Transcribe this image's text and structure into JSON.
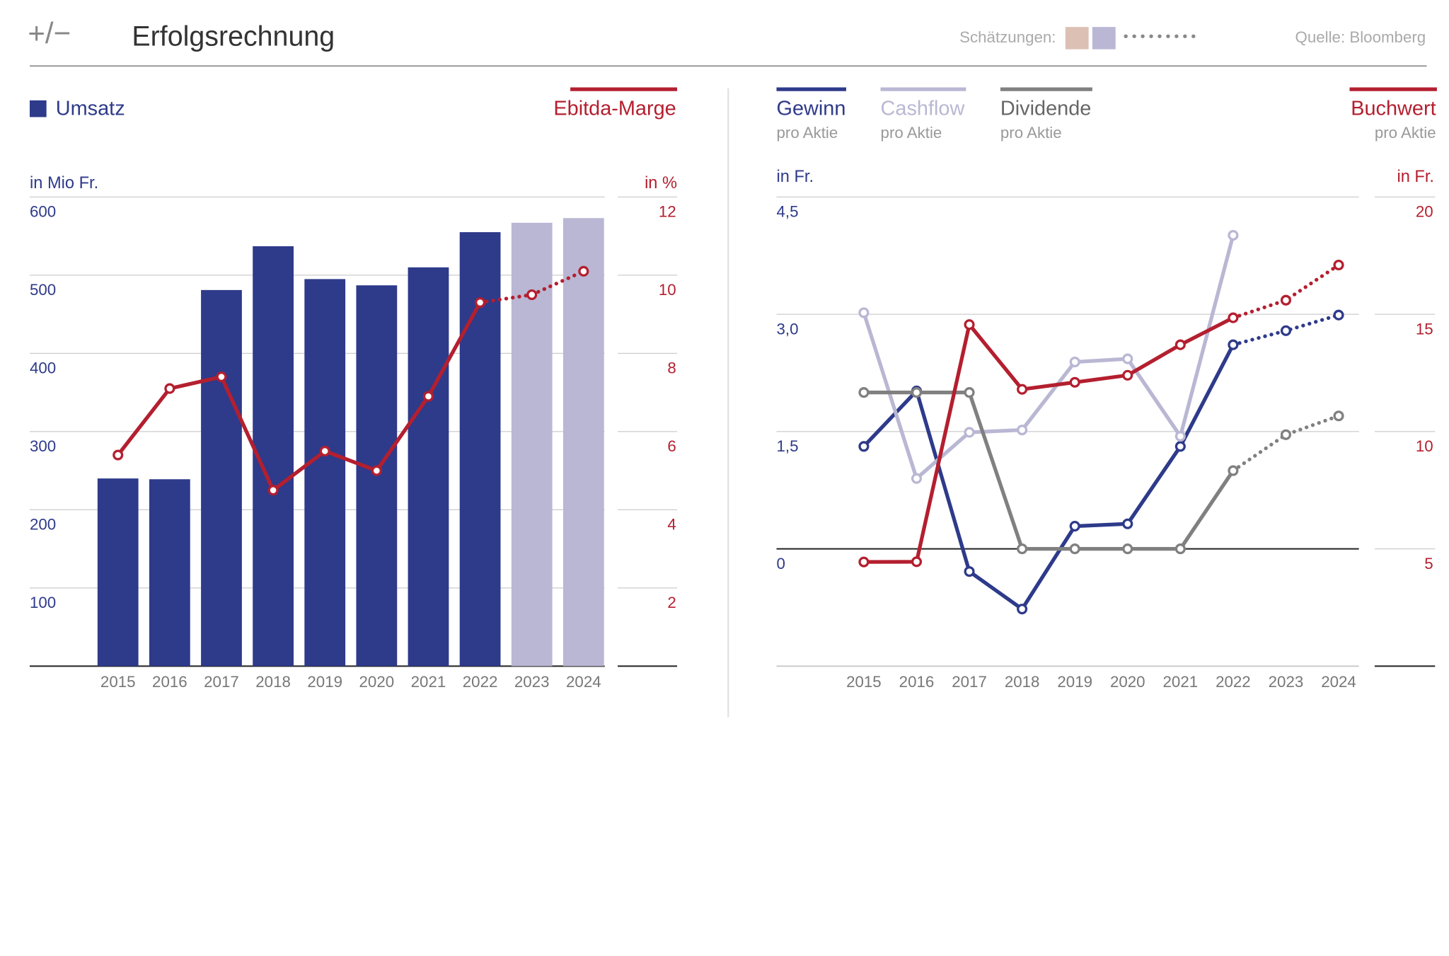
{
  "header": {
    "logo": "+/−",
    "title": "Erfolgsrechnung",
    "estimates_label": "Schätzungen:",
    "estimate_colors": [
      "#dcc0b4",
      "#b9b7d3"
    ],
    "source": "Quelle: Bloomberg"
  },
  "chart_data": [
    {
      "type": "bar",
      "categories": [
        "2015",
        "2016",
        "2017",
        "2018",
        "2019",
        "2020",
        "2021",
        "2022",
        "2023",
        "2024"
      ],
      "estimates": [
        "2023",
        "2024"
      ],
      "y_unit": "in Mio Fr.",
      "y2_unit": "in %",
      "ylim": [
        0,
        600
      ],
      "yticks": [
        100,
        200,
        300,
        400,
        500,
        600
      ],
      "y2lim": [
        0,
        12
      ],
      "y2ticks": [
        2,
        4,
        6,
        8,
        10,
        12
      ],
      "grid": true,
      "series": [
        {
          "name": "Umsatz",
          "type": "bar",
          "color": "#2e3a8a",
          "estimate_color": "#b9b7d3",
          "values": [
            240,
            239,
            481,
            537,
            495,
            487,
            510,
            555,
            567,
            573
          ]
        },
        {
          "name": "Ebitda-Marge",
          "type": "line",
          "axis": "y2",
          "color": "#b41f2f",
          "values": [
            5.4,
            7.1,
            7.4,
            4.5,
            5.5,
            5.0,
            6.9,
            9.3,
            9.5,
            10.1
          ]
        }
      ]
    },
    {
      "type": "line",
      "categories": [
        "2015",
        "2016",
        "2017",
        "2018",
        "2019",
        "2020",
        "2021",
        "2022",
        "2023",
        "2024"
      ],
      "estimates": [
        "2023",
        "2024"
      ],
      "y_unit": "in Fr.",
      "y2_unit": "in Fr.",
      "ylim": [
        -1.5,
        4.5
      ],
      "yticks": [
        0,
        {
          "value": 1.5,
          "label": "1,5"
        },
        {
          "value": 3,
          "label": "3,0"
        },
        {
          "value": 4.5,
          "label": "4,5"
        }
      ],
      "y2lim": [
        0,
        20
      ],
      "y2ticks": [
        5,
        10,
        15,
        20
      ],
      "grid": true,
      "series": [
        {
          "name": "Gewinn",
          "subtitle": "pro Aktie",
          "color": "#2e3a8a",
          "values": [
            1.31,
            2.02,
            -0.29,
            -0.77,
            0.29,
            0.32,
            1.31,
            2.61,
            2.79,
            2.99
          ]
        },
        {
          "name": "Cashflow",
          "subtitle": "pro Aktie",
          "color": "#b9b7d3",
          "values": [
            3.02,
            0.9,
            1.49,
            1.52,
            2.39,
            2.43,
            1.44,
            4.01,
            null,
            null
          ]
        },
        {
          "name": "Dividende",
          "subtitle": "pro Aktie",
          "color": "#808080",
          "values": [
            2.0,
            2.0,
            2.0,
            0,
            0,
            0,
            0,
            1.0,
            1.46,
            1.7
          ]
        },
        {
          "name": "Buchwert",
          "subtitle": "pro Aktie",
          "axis": "y2",
          "color": "#b41f2f",
          "values": [
            4.44,
            4.45,
            14.56,
            11.8,
            12.1,
            12.4,
            13.7,
            14.85,
            15.6,
            17.1
          ]
        }
      ]
    }
  ]
}
